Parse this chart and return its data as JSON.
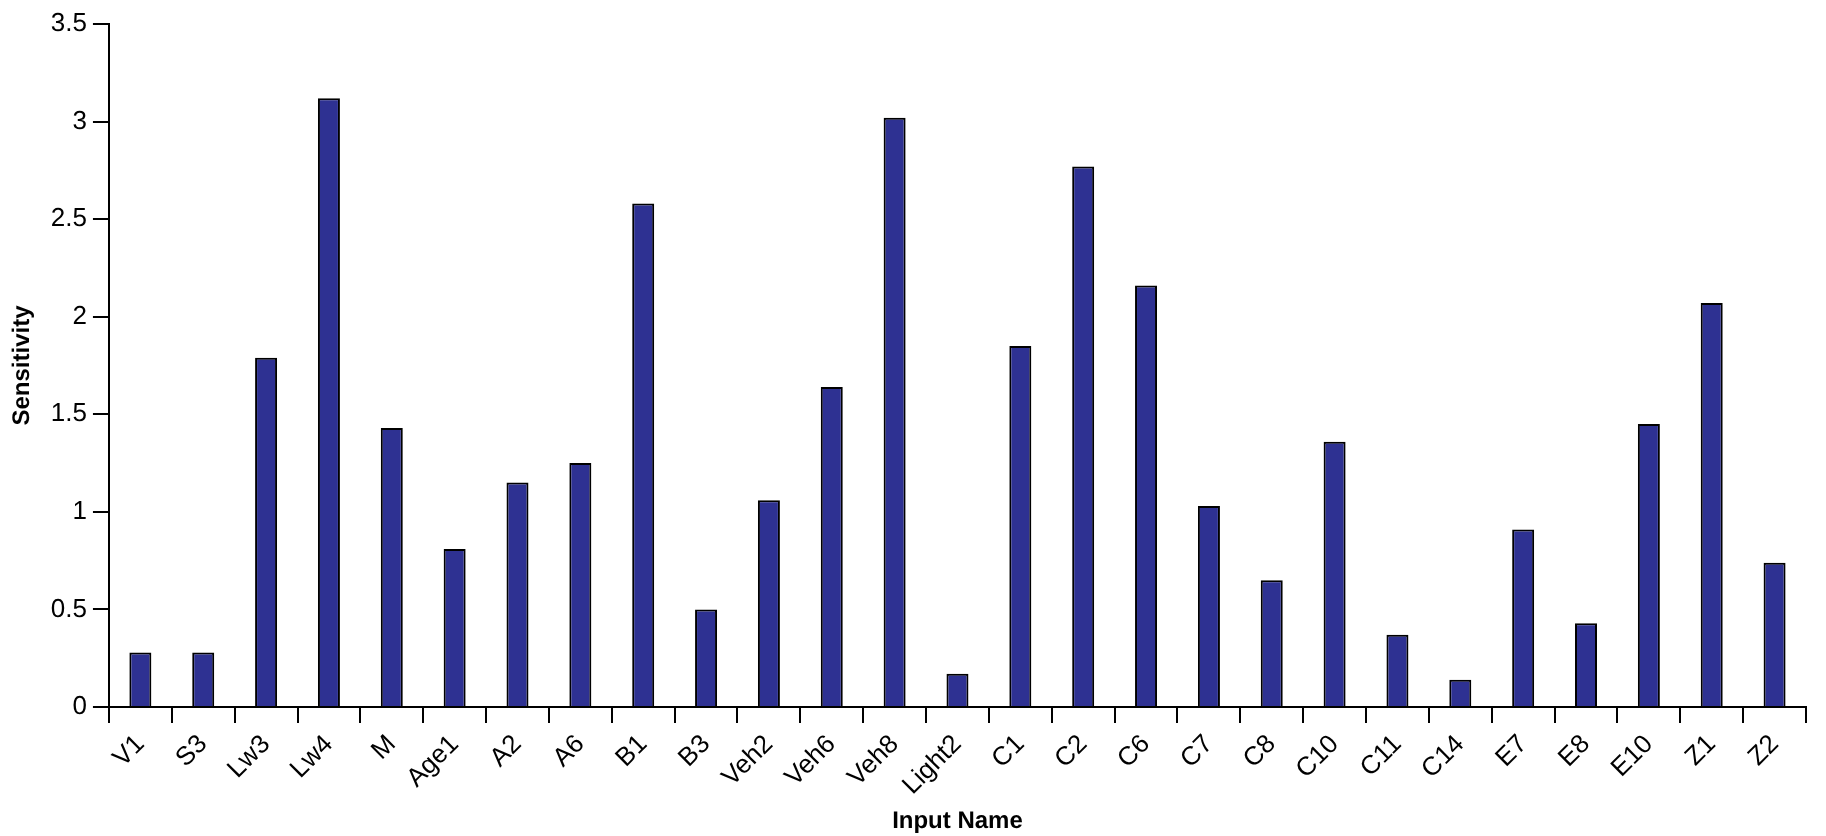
{
  "chart_data": {
    "type": "bar",
    "xlabel": "Input Name",
    "ylabel": "Sensitivity",
    "categories": [
      "V1",
      "S3",
      "Lw3",
      "Lw4",
      "M",
      "Age1",
      "A2",
      "A6",
      "B1",
      "B3",
      "Veh2",
      "Veh6",
      "Veh8",
      "Light2",
      "C1",
      "C2",
      "C6",
      "C7",
      "C8",
      "C10",
      "C11",
      "C14",
      "E7",
      "E8",
      "E10",
      "Z1",
      "Z2"
    ],
    "values": [
      0.28,
      0.28,
      1.79,
      3.12,
      1.43,
      0.81,
      1.15,
      1.25,
      2.58,
      0.5,
      1.06,
      1.64,
      3.02,
      0.17,
      1.85,
      2.77,
      2.16,
      1.03,
      0.65,
      1.36,
      0.37,
      0.14,
      0.91,
      0.43,
      1.45,
      2.07,
      0.74
    ],
    "color": "#2e3192",
    "ylim": [
      0,
      3.5
    ],
    "yticks": [
      0,
      0.5,
      1,
      1.5,
      2,
      2.5,
      3,
      3.5
    ],
    "grid": false,
    "legend": false
  }
}
